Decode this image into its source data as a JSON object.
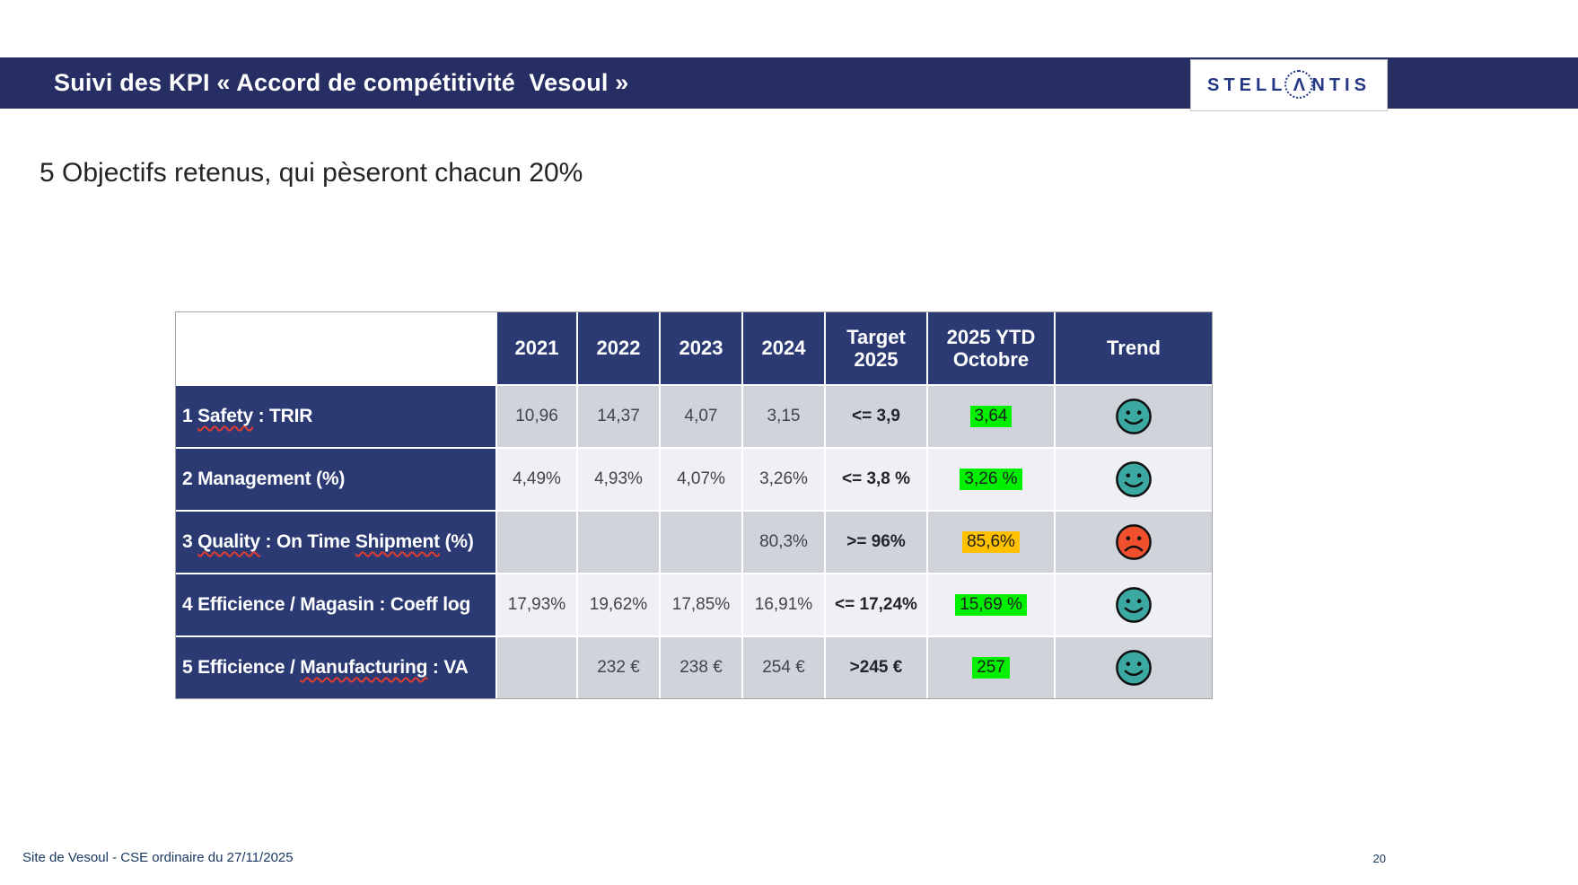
{
  "slide": {
    "title_bar": {
      "title": "Suivi des KPI « Accord de compétitivité  Vesoul »",
      "bg_color": "#262E63"
    },
    "logo": {
      "text": "STELLANTIS",
      "left": "STELL",
      "a_glyph": "Λ",
      "right": "NTIS",
      "color": "#243782"
    },
    "subtitle": "5 Objectifs retenus, qui pèseront chacun 20%",
    "footer": {
      "left_text": "Site de Vesoul - CSE ordinaire du 27/11/2025",
      "page_number": "20"
    }
  },
  "table": {
    "columns": [
      "",
      "2021",
      "2022",
      "2023",
      "2024",
      "Target\n2025",
      "2025 YTD\nOctobre",
      "Trend"
    ],
    "rows": [
      {
        "label": "1 Safety : TRIR",
        "misspelled": [
          "Safety"
        ],
        "values": [
          "10,96",
          "14,37",
          "4,07",
          "3,15"
        ],
        "target": "<= 3,9",
        "ytd": "3,64",
        "ytd_highlight": "green",
        "trend": "happy"
      },
      {
        "label": "2 Management (%)",
        "values": [
          "4,49%",
          "4,93%",
          "4,07%",
          "3,26%"
        ],
        "target": "<= 3,8 %",
        "ytd": "3,26 %",
        "ytd_highlight": "green",
        "trend": "happy"
      },
      {
        "label": "3 Quality : On Time Shipment (%)",
        "misspelled": [
          "Quality",
          "Shipment"
        ],
        "values": [
          "",
          "",
          "",
          "80,3%"
        ],
        "target": ">= 96%",
        "ytd": "85,6%",
        "ytd_highlight": "orange",
        "trend": "sad"
      },
      {
        "label": "4 Efficience / Magasin : Coeff log",
        "values": [
          "17,93%",
          "19,62%",
          "17,85%",
          "16,91%"
        ],
        "target": "<= 17,24%",
        "ytd": "15,69 %",
        "ytd_highlight": "green",
        "trend": "happy"
      },
      {
        "label": "5 Efficience / Manufacturing : VA",
        "misspelled": [
          "Manufacturing"
        ],
        "values": [
          "",
          "232 €",
          "238 €",
          "254 €"
        ],
        "target": ">245 €",
        "ytd": "257",
        "ytd_highlight": "green",
        "trend": "happy"
      }
    ],
    "colors": {
      "header_bg": "#2C3A74",
      "row_odd_bg": "#D1D3DB",
      "row_even_bg": "#EEF0F3",
      "highlight_green": "#00F000",
      "highlight_orange": "#FFC000",
      "happy_face": "#3BA8A2",
      "sad_face": "#F0502E"
    }
  }
}
